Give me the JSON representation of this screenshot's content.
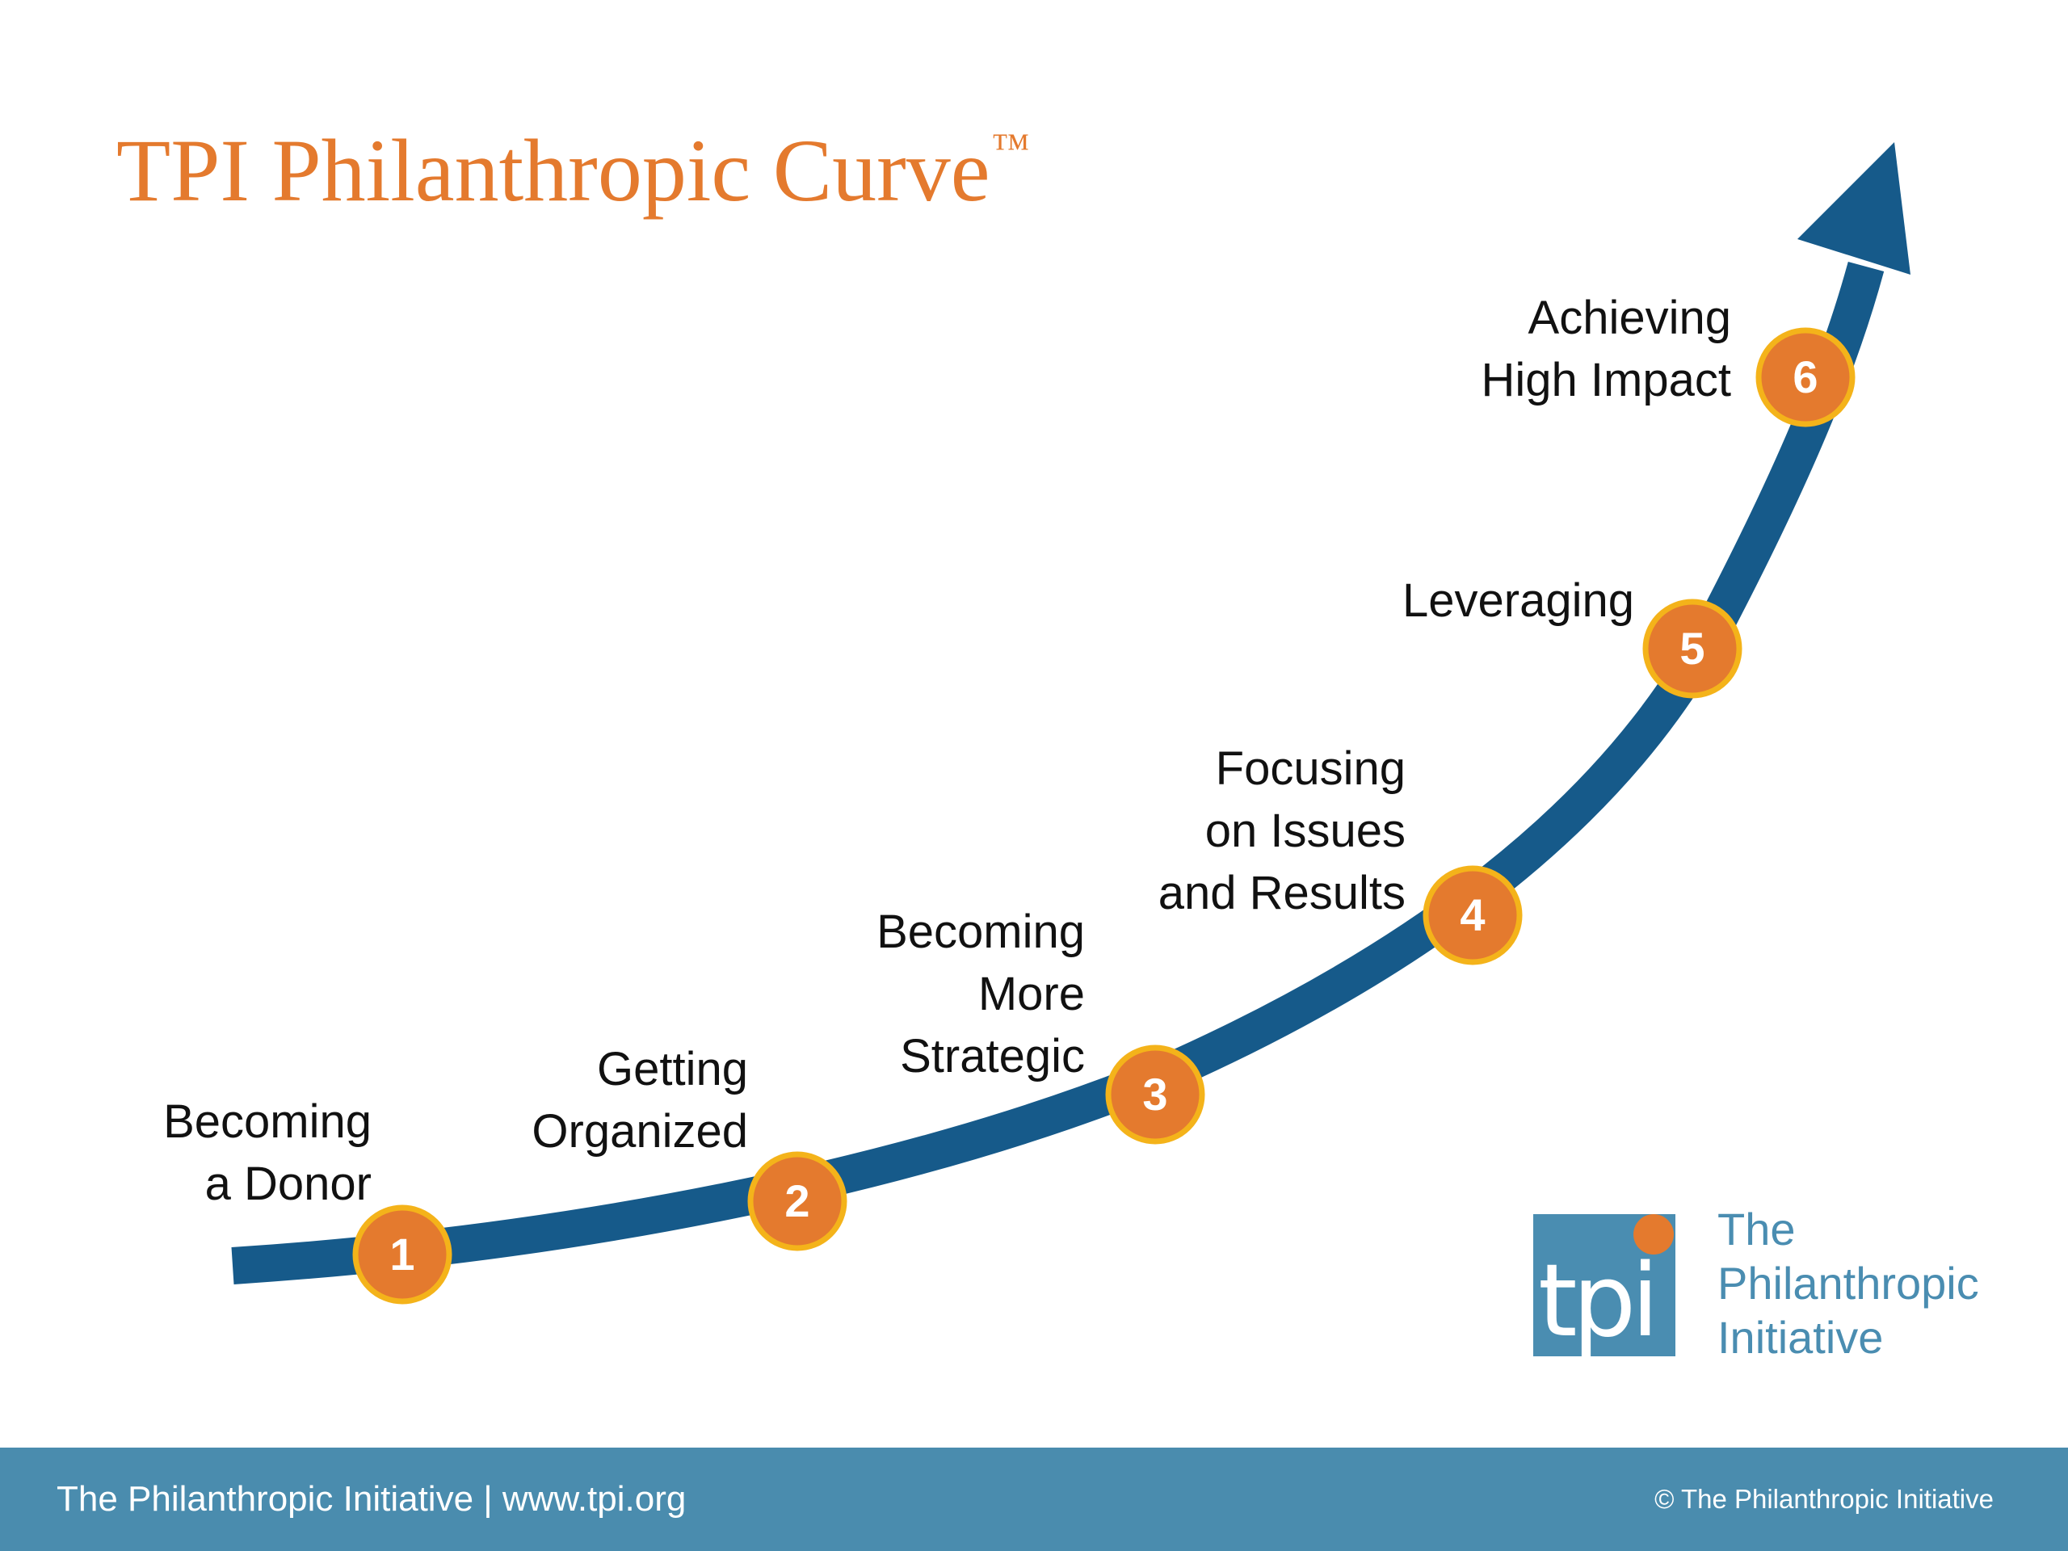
{
  "title": {
    "text": "TPI Philanthropic Curve",
    "mark": "™"
  },
  "colors": {
    "title": "#e47a2e",
    "curve": "#165a8a",
    "marker_fill": "#e47a2e",
    "marker_ring": "#f4b31a",
    "footer_bg": "#4a8cae",
    "logo_blue": "#4a8db1"
  },
  "stages": [
    {
      "number": "1",
      "lines": [
        "Becoming",
        "a Donor"
      ]
    },
    {
      "number": "2",
      "lines": [
        "Getting",
        "Organized"
      ]
    },
    {
      "number": "3",
      "lines": [
        "Becoming",
        "More",
        "Strategic"
      ]
    },
    {
      "number": "4",
      "lines": [
        "Focusing",
        "on Issues",
        "and Results"
      ]
    },
    {
      "number": "5",
      "lines": [
        "Leveraging"
      ]
    },
    {
      "number": "6",
      "lines": [
        "Achieving",
        "High Impact"
      ]
    }
  ],
  "logo": {
    "mark_text": "tpi",
    "name_lines": [
      "The",
      "Philanthropic",
      "Initiative"
    ]
  },
  "footer": {
    "left": "The Philanthropic Initiative  |  www.tpi.org",
    "right": "© The Philanthropic Initiative"
  }
}
